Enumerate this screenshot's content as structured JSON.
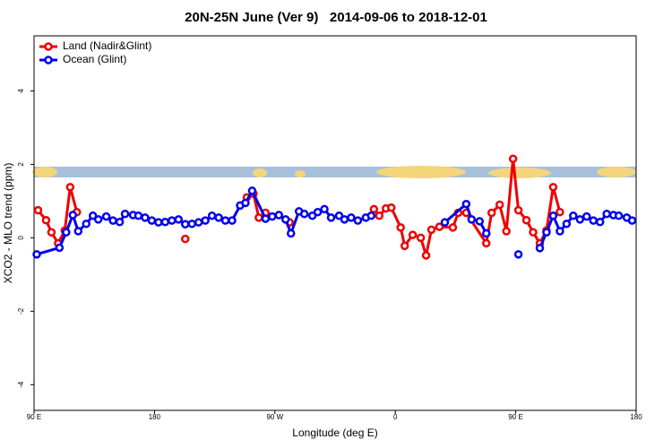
{
  "chart_data": {
    "type": "line",
    "title": "20N-25N June (Ver 9)   2014-09-06 to 2018-12-01",
    "x_label": "Longitude (deg E)",
    "y_label": "XCO2 - MLO trend (ppm)",
    "xlim": [
      90,
      540
    ],
    "xticks": [
      {
        "value": 90,
        "label": "90 E"
      },
      180,
      {
        "value": 270,
        "label": "90 W"
      },
      {
        "value": 360,
        "label": "0"
      },
      {
        "value": 450,
        "label": "90 E"
      },
      {
        "value": 540,
        "label": "180"
      }
    ],
    "ylim": [
      -4.7,
      5.5
    ],
    "yticks": [
      -4,
      -2,
      0,
      2,
      4
    ],
    "legend": "top-left",
    "series": [
      {
        "name": "Land (Nadir&Glint)",
        "color": "#ee0000",
        "x": [
          93,
          99,
          103,
          108,
          113,
          117,
          122,
          null,
          203,
          null,
          249,
          254,
          258,
          263,
          null,
          281,
          null,
          344,
          348,
          353,
          357,
          364,
          367,
          373,
          379,
          383,
          387,
          393,
          403,
          407,
          413,
          428,
          432,
          438,
          443,
          448,
          452,
          458,
          463,
          468,
          473,
          478,
          483
        ],
        "values": [
          0.75,
          0.48,
          0.15,
          -0.15,
          0.2,
          1.38,
          0.7,
          null,
          -0.03,
          null,
          1.1,
          1.2,
          0.55,
          0.68,
          null,
          0.42,
          null,
          0.78,
          0.6,
          0.8,
          0.82,
          0.28,
          -0.22,
          0.08,
          0.0,
          -0.48,
          0.22,
          0.3,
          0.28,
          0.68,
          0.68,
          -0.15,
          0.68,
          0.9,
          0.18,
          2.15,
          0.75,
          0.48,
          0.15,
          -0.15,
          0.2,
          1.38,
          0.7
        ]
      },
      {
        "name": "Ocean (Glint)",
        "color": "#0000ee",
        "x": [
          92,
          109,
          114,
          119,
          123,
          129,
          134,
          138,
          144,
          149,
          154,
          158,
          164,
          168,
          173,
          178,
          183,
          188,
          193,
          198,
          203,
          208,
          213,
          218,
          223,
          228,
          233,
          238,
          244,
          248,
          253,
          263,
          268,
          273,
          278,
          282,
          288,
          292,
          298,
          302,
          307,
          312,
          318,
          322,
          327,
          332,
          338,
          342,
          null,
          397,
          413,
          417,
          423,
          428,
          null,
          452,
          null,
          468,
          473,
          478,
          483,
          488,
          493,
          498,
          503,
          508,
          513,
          518,
          523,
          527,
          533,
          537
        ],
        "values": [
          -0.45,
          -0.27,
          0.15,
          0.62,
          0.18,
          0.38,
          0.6,
          0.5,
          0.58,
          0.47,
          0.43,
          0.65,
          0.62,
          0.6,
          0.55,
          0.47,
          0.42,
          0.43,
          0.47,
          0.5,
          0.37,
          0.38,
          0.42,
          0.47,
          0.6,
          0.55,
          0.47,
          0.47,
          0.88,
          0.95,
          1.28,
          0.52,
          0.58,
          0.62,
          0.5,
          0.12,
          0.72,
          0.65,
          0.6,
          0.7,
          0.78,
          0.55,
          0.6,
          0.5,
          0.55,
          0.47,
          0.55,
          0.6,
          null,
          0.42,
          0.92,
          0.5,
          0.45,
          0.12,
          null,
          -0.45,
          null,
          -0.28,
          0.15,
          0.6,
          0.18,
          0.38,
          0.6,
          0.5,
          0.58,
          0.47,
          0.43,
          0.65,
          0.62,
          0.6,
          0.55,
          0.47
        ]
      }
    ]
  }
}
